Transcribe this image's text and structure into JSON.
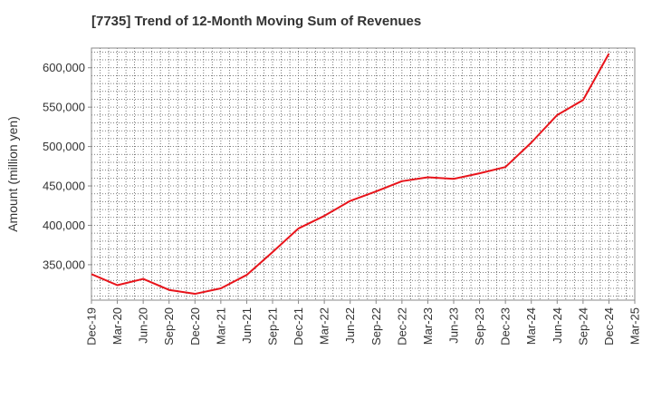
{
  "chart_data": {
    "type": "line",
    "title": "[7735]  Trend of 12-Month Moving Sum of Revenues",
    "xlabel": "",
    "ylabel": "Amount (million yen)",
    "ylim": [
      305000,
      625000
    ],
    "yticks": [
      350000,
      400000,
      450000,
      500000,
      550000,
      600000
    ],
    "ytick_labels": [
      "350,000",
      "400,000",
      "450,000",
      "500,000",
      "550,000",
      "600,000"
    ],
    "x_tick_labels": [
      "Dec-19",
      "Mar-20",
      "Jun-20",
      "Sep-20",
      "Dec-20",
      "Mar-21",
      "Jun-21",
      "Sep-21",
      "Dec-21",
      "Mar-22",
      "Jun-22",
      "Sep-22",
      "Dec-22",
      "Mar-23",
      "Jun-23",
      "Sep-23",
      "Dec-23",
      "Mar-24",
      "Jun-24",
      "Sep-24",
      "Dec-24",
      "Mar-25"
    ],
    "grid": true,
    "line_color": "#e8141b",
    "series": [
      {
        "x": [
          "Dec-19",
          "Mar-20",
          "Jun-20",
          "Sep-20",
          "Dec-20",
          "Mar-21",
          "Jun-21",
          "Sep-21",
          "Dec-21",
          "Mar-22",
          "Jun-22",
          "Sep-22",
          "Dec-22",
          "Mar-23",
          "Jun-23",
          "Sep-23",
          "Dec-23",
          "Mar-24",
          "Jun-24",
          "Sep-24",
          "Dec-24"
        ],
        "values": [
          338000,
          324000,
          332000,
          318000,
          313000,
          320000,
          337000,
          366000,
          396000,
          412000,
          431000,
          443000,
          456000,
          461000,
          459000,
          466000,
          474000,
          505000,
          540000,
          559000,
          618000
        ]
      }
    ]
  }
}
